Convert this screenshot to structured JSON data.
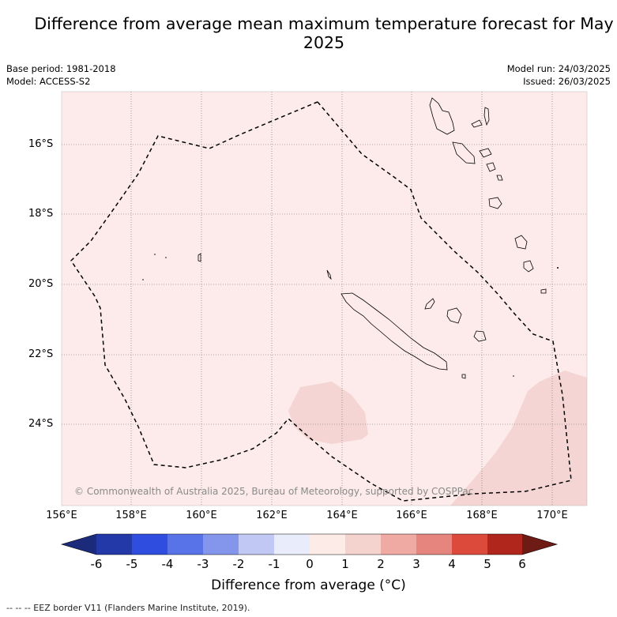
{
  "title": "Difference from average mean maximum temperature forecast for May 2025",
  "meta": {
    "base_period": "Base period: 1981-2018",
    "model": "Model: ACCESS-S2",
    "model_run": "Model run: 24/03/2025",
    "issued": "Issued: 26/03/2025"
  },
  "map": {
    "latitude_labels": [
      "16°S",
      "18°S",
      "20°S",
      "22°S",
      "24°S"
    ],
    "longitude_labels": [
      "156°E",
      "158°E",
      "160°E",
      "162°E",
      "164°E",
      "166°E",
      "168°E",
      "170°E"
    ],
    "copyright": "© Commonwealth of Australia 2025, Bureau of Meteorology, supported by COSPPac",
    "colors": {
      "background_anomaly": "#fcebea",
      "anomaly_1_2": "#f4d5d3",
      "eez_line": "#000000"
    }
  },
  "colorbar": {
    "ticks": [
      "-6",
      "-5",
      "-4",
      "-3",
      "-2",
      "-1",
      "0",
      "1",
      "2",
      "3",
      "4",
      "5",
      "6"
    ],
    "colors": [
      "#1b2a7a",
      "#2439a8",
      "#2f4ddf",
      "#5872e8",
      "#8496ec",
      "#c1c8f4",
      "#e9ecfb",
      "#fdebe7",
      "#f4d2ce",
      "#efaaa4",
      "#e6857e",
      "#dc4a3c",
      "#b0261d",
      "#6e1a15"
    ],
    "title": "Difference from average (°C)"
  },
  "legend_note": "-- -- -- EEZ border V11 (Flanders Marine Institute, 2019)."
}
